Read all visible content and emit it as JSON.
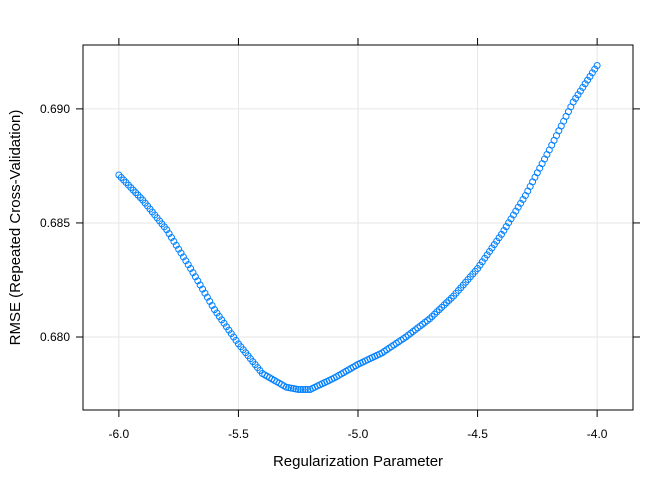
{
  "chart_data": {
    "type": "scatter",
    "title": "",
    "xlabel": "Regularization Parameter",
    "ylabel": "RMSE (Repeated Cross-Validation)",
    "xlim": [
      -6.15,
      -3.85
    ],
    "ylim": [
      0.6768,
      0.6928
    ],
    "x_ticks": [
      -6.0,
      -5.5,
      -5.0,
      -4.5,
      -4.0
    ],
    "x_tick_labels": [
      "-6.0",
      "-5.5",
      "-5.0",
      "-4.5",
      "-4.0"
    ],
    "y_ticks": [
      0.68,
      0.685,
      0.69
    ],
    "y_tick_labels": [
      "0.680",
      "0.685",
      "0.690"
    ],
    "grid": true,
    "series": [
      {
        "color": "#0080ff",
        "marker": "open-circle",
        "x_range": [
          -6.0,
          -4.0
        ],
        "n_points": 201,
        "anchor_points": [
          {
            "x": -6.0,
            "y": 0.6871
          },
          {
            "x": -5.9,
            "y": 0.686
          },
          {
            "x": -5.8,
            "y": 0.6847
          },
          {
            "x": -5.7,
            "y": 0.683
          },
          {
            "x": -5.6,
            "y": 0.6812
          },
          {
            "x": -5.5,
            "y": 0.6797
          },
          {
            "x": -5.4,
            "y": 0.6784
          },
          {
            "x": -5.3,
            "y": 0.6778
          },
          {
            "x": -5.25,
            "y": 0.6777
          },
          {
            "x": -5.2,
            "y": 0.6777
          },
          {
            "x": -5.1,
            "y": 0.6782
          },
          {
            "x": -5.0,
            "y": 0.6788
          },
          {
            "x": -4.9,
            "y": 0.6793
          },
          {
            "x": -4.8,
            "y": 0.68
          },
          {
            "x": -4.7,
            "y": 0.6808
          },
          {
            "x": -4.6,
            "y": 0.6818
          },
          {
            "x": -4.5,
            "y": 0.683
          },
          {
            "x": -4.4,
            "y": 0.6845
          },
          {
            "x": -4.3,
            "y": 0.6862
          },
          {
            "x": -4.2,
            "y": 0.6882
          },
          {
            "x": -4.1,
            "y": 0.6903
          },
          {
            "x": -4.0,
            "y": 0.6919
          }
        ]
      }
    ]
  }
}
